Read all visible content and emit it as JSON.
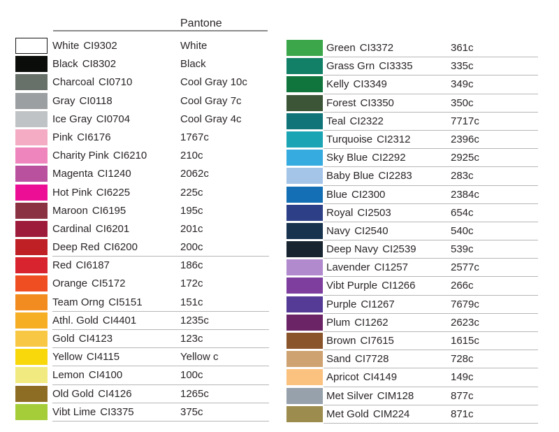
{
  "header": {
    "pantone_label": "Pantone"
  },
  "text_color": "#2a2526",
  "rule_color": "#8c8c8c",
  "divider_color": "#b6b6b6",
  "left_column": {
    "rows": [
      {
        "name": "White",
        "code": "CI9302",
        "pantone": "White",
        "color": "#FFFFFF",
        "bordered": true,
        "underline": false
      },
      {
        "name": "Black",
        "code": "CI8302",
        "pantone": "Black",
        "color": "#0B0D0A",
        "bordered": false,
        "underline": false
      },
      {
        "name": "Charcoal",
        "code": "CI0710",
        "pantone": "Cool Gray 10c",
        "color": "#677069",
        "bordered": false,
        "underline": false
      },
      {
        "name": "Gray",
        "code": "CI0118",
        "pantone": "Cool Gray 7c",
        "color": "#9B9FA2",
        "bordered": false,
        "underline": false
      },
      {
        "name": "Ice Gray",
        "code": "CI0704",
        "pantone": "Cool Gray 4c",
        "color": "#C0C3C5",
        "bordered": false,
        "underline": false
      },
      {
        "name": "Pink",
        "code": "CI6176",
        "pantone": "1767c",
        "color": "#F3ACC4",
        "bordered": false,
        "underline": false
      },
      {
        "name": "Charity Pink",
        "code": "CI6210",
        "pantone": "210c",
        "color": "#EF85BD",
        "bordered": false,
        "underline": false
      },
      {
        "name": "Magenta",
        "code": "CI1240",
        "pantone": "2062c",
        "color": "#B9519E",
        "bordered": false,
        "underline": false
      },
      {
        "name": "Hot Pink",
        "code": "CI6225",
        "pantone": "225c",
        "color": "#ED0E96",
        "bordered": false,
        "underline": false
      },
      {
        "name": "Maroon",
        "code": "CI6195",
        "pantone": "195c",
        "color": "#8A3142",
        "bordered": false,
        "underline": false
      },
      {
        "name": "Cardinal",
        "code": "CI6201",
        "pantone": "201c",
        "color": "#9E1C3B",
        "bordered": false,
        "underline": false
      },
      {
        "name": "Deep Red",
        "code": "CI6200",
        "pantone": "200c",
        "color": "#BE2026",
        "bordered": false,
        "underline": true
      },
      {
        "name": "Red",
        "code": "CI6187",
        "pantone": "186c",
        "color": "#D7242E",
        "bordered": false,
        "underline": false
      },
      {
        "name": "Orange",
        "code": "CI5172",
        "pantone": "172c",
        "color": "#EF4E23",
        "bordered": false,
        "underline": false
      },
      {
        "name": "Team Orng",
        "code": "CI5151",
        "pantone": "151c",
        "color": "#F28B20",
        "bordered": false,
        "underline": true
      },
      {
        "name": "Athl. Gold",
        "code": "CI4401",
        "pantone": "1235c",
        "color": "#F6AE24",
        "bordered": false,
        "underline": true
      },
      {
        "name": "Gold",
        "code": "CI4123",
        "pantone": "123c",
        "color": "#F8C845",
        "bordered": false,
        "underline": true
      },
      {
        "name": "Yellow",
        "code": "CI4115",
        "pantone": "Yellow c",
        "color": "#F8D80A",
        "bordered": false,
        "underline": true
      },
      {
        "name": "Lemon",
        "code": "CI4100",
        "pantone": "100c",
        "color": "#F0EA80",
        "bordered": false,
        "underline": true
      },
      {
        "name": "Old Gold",
        "code": "CI4126",
        "pantone": "1265c",
        "color": "#8D6C24",
        "bordered": false,
        "underline": true
      },
      {
        "name": "Vibt Lime",
        "code": "CI3375",
        "pantone": "375c",
        "color": "#A5CD39",
        "bordered": false,
        "underline": true
      }
    ]
  },
  "right_column": {
    "rows": [
      {
        "name": "Green",
        "code": "CI3372",
        "pantone": "361c",
        "color": "#3BA74A",
        "bordered": false,
        "underline": true
      },
      {
        "name": "Grass Grn",
        "code": "CI3335",
        "pantone": "335c",
        "color": "#128066",
        "bordered": false,
        "underline": true
      },
      {
        "name": "Kelly",
        "code": "CI3349",
        "pantone": "349c",
        "color": "#0F753C",
        "bordered": false,
        "underline": true
      },
      {
        "name": "Forest",
        "code": "CI3350",
        "pantone": "350c",
        "color": "#3D5537",
        "bordered": false,
        "underline": true
      },
      {
        "name": "Teal",
        "code": "CI2322",
        "pantone": "7717c",
        "color": "#107478",
        "bordered": false,
        "underline": true
      },
      {
        "name": "Turquoise",
        "code": "CI2312",
        "pantone": "2396c",
        "color": "#1BA4B3",
        "bordered": false,
        "underline": true
      },
      {
        "name": "Sky Blue",
        "code": "CI2292",
        "pantone": "2925c",
        "color": "#36ABDF",
        "bordered": false,
        "underline": true
      },
      {
        "name": "Baby Blue",
        "code": "CI2283",
        "pantone": "283c",
        "color": "#A4C4E8",
        "bordered": false,
        "underline": true
      },
      {
        "name": "Blue",
        "code": "CI2300",
        "pantone": "2384c",
        "color": "#156FB4",
        "bordered": false,
        "underline": true
      },
      {
        "name": "Royal",
        "code": "CI2503",
        "pantone": "654c",
        "color": "#2D3F87",
        "bordered": false,
        "underline": true
      },
      {
        "name": "Navy",
        "code": "CI2540",
        "pantone": "540c",
        "color": "#17334E",
        "bordered": false,
        "underline": true
      },
      {
        "name": "Deep Navy",
        "code": "CI2539",
        "pantone": "539c",
        "color": "#182430",
        "bordered": false,
        "underline": true
      },
      {
        "name": "Lavender",
        "code": "CI1257",
        "pantone": "2577c",
        "color": "#B189CD",
        "bordered": false,
        "underline": true
      },
      {
        "name": "Vibt Purple",
        "code": "CI1266",
        "pantone": "266c",
        "color": "#7D3E9E",
        "bordered": false,
        "underline": true
      },
      {
        "name": "Purple",
        "code": "CI1267",
        "pantone": "7679c",
        "color": "#553A96",
        "bordered": false,
        "underline": true
      },
      {
        "name": "Plum",
        "code": "CI1262",
        "pantone": "2623c",
        "color": "#6B2465",
        "bordered": false,
        "underline": true
      },
      {
        "name": "Brown",
        "code": "CI7615",
        "pantone": "1615c",
        "color": "#8A552B",
        "bordered": false,
        "underline": true
      },
      {
        "name": "Sand",
        "code": "CI7728",
        "pantone": "728c",
        "color": "#CFA371",
        "bordered": false,
        "underline": true
      },
      {
        "name": "Apricot",
        "code": "CI4149",
        "pantone": "149c",
        "color": "#FBC17F",
        "bordered": false,
        "underline": true
      },
      {
        "name": "Met Silver",
        "code": "CIM128",
        "pantone": "877c",
        "color": "#97A1AB",
        "bordered": false,
        "underline": true
      },
      {
        "name": "Met Gold",
        "code": "CIM224",
        "pantone": "871c",
        "color": "#9C8C4E",
        "bordered": false,
        "underline": true
      }
    ]
  }
}
